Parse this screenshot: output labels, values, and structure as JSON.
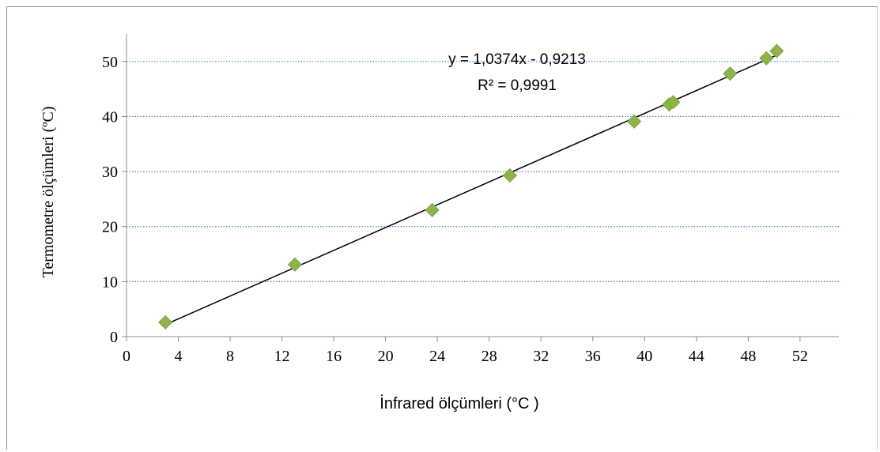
{
  "chart_data": {
    "type": "scatter",
    "xlabel": "İnfrared ölçümleri (°C )",
    "ylabel": "Termometre ölçümleri (ºC)",
    "xlim": [
      0,
      55
    ],
    "ylim": [
      0,
      55
    ],
    "x_ticks": [
      0,
      4,
      8,
      12,
      16,
      20,
      24,
      28,
      32,
      36,
      40,
      44,
      48,
      52
    ],
    "y_ticks": [
      0,
      10,
      20,
      30,
      40,
      50
    ],
    "grid": "horizontal dotted",
    "marker_color": "#8db44a",
    "line_color": "#000000",
    "grid_color": "#4a7fbf",
    "series": [
      {
        "points": [
          {
            "x": 3.0,
            "y": 2.6
          },
          {
            "x": 13.0,
            "y": 13.1
          },
          {
            "x": 23.6,
            "y": 23.0
          },
          {
            "x": 29.6,
            "y": 29.3
          },
          {
            "x": 39.2,
            "y": 39.1
          },
          {
            "x": 41.9,
            "y": 42.2
          },
          {
            "x": 42.2,
            "y": 42.6
          },
          {
            "x": 46.6,
            "y": 47.8
          },
          {
            "x": 49.4,
            "y": 50.6
          },
          {
            "x": 50.2,
            "y": 51.9
          }
        ]
      }
    ],
    "trendline": {
      "slope": 1.0374,
      "intercept": -0.9213,
      "x_range": [
        3.0,
        50.2
      ],
      "equation_label": "y = 1,0374x - 0,9213",
      "r2_label": "R² = 0,9991"
    }
  }
}
